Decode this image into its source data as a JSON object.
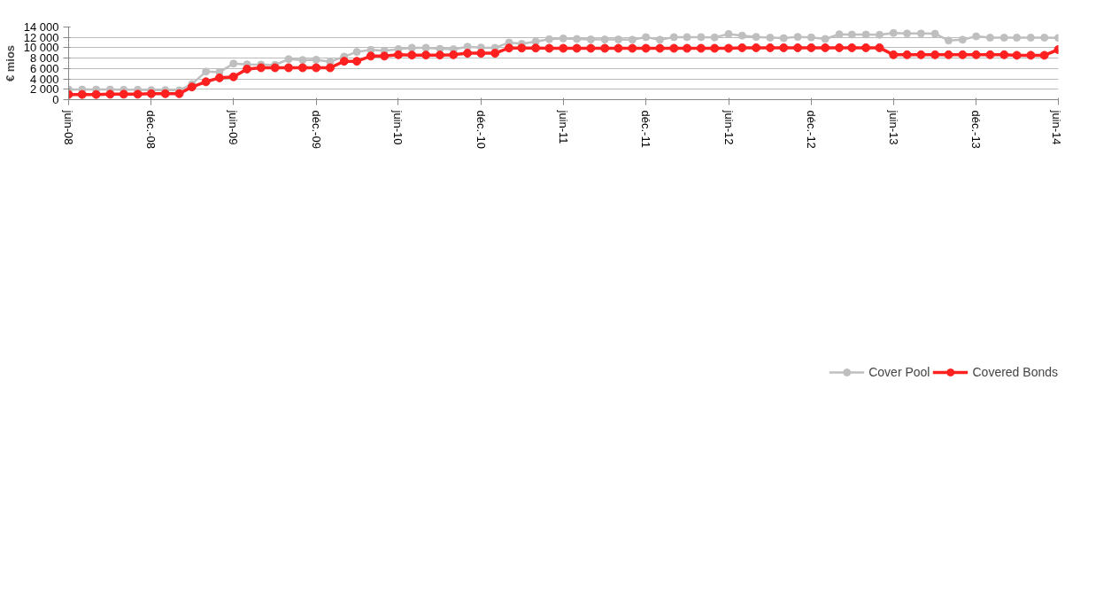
{
  "chart_data": {
    "type": "line",
    "ylabel": "€ mios",
    "x": [
      "2008-06",
      "2008-07",
      "2008-08",
      "2008-09",
      "2008-10",
      "2008-11",
      "2008-12",
      "2009-01",
      "2009-02",
      "2009-03",
      "2009-04",
      "2009-05",
      "2009-06",
      "2009-07",
      "2009-08",
      "2009-09",
      "2009-10",
      "2009-11",
      "2009-12",
      "2010-01",
      "2010-02",
      "2010-03",
      "2010-04",
      "2010-05",
      "2010-06",
      "2010-07",
      "2010-08",
      "2010-09",
      "2010-10",
      "2010-11",
      "2010-12",
      "2011-01",
      "2011-02",
      "2011-03",
      "2011-04",
      "2011-05",
      "2011-06",
      "2011-07",
      "2011-08",
      "2011-09",
      "2011-10",
      "2011-11",
      "2011-12",
      "2012-01",
      "2012-02",
      "2012-03",
      "2012-04",
      "2012-05",
      "2012-06",
      "2012-07",
      "2012-08",
      "2012-09",
      "2012-10",
      "2012-11",
      "2012-12",
      "2013-01",
      "2013-02",
      "2013-03",
      "2013-04",
      "2013-05",
      "2013-06",
      "2013-07",
      "2013-08",
      "2013-09",
      "2013-10",
      "2013-11",
      "2013-12",
      "2014-01",
      "2014-02",
      "2014-03",
      "2014-04",
      "2014-05",
      "2014-06"
    ],
    "series": [
      {
        "name": "Cover Pool",
        "color": "#bfbfbf",
        "marker": "circle",
        "values": [
          1950,
          1950,
          1950,
          1950,
          1900,
          1900,
          1850,
          1850,
          1800,
          3000,
          5400,
          5300,
          6950,
          6800,
          6750,
          6700,
          7800,
          7650,
          7700,
          7300,
          8300,
          9200,
          9600,
          9450,
          9750,
          10000,
          10000,
          9800,
          9700,
          10200,
          10050,
          10000,
          11000,
          10750,
          11200,
          11650,
          11800,
          11700,
          11600,
          11600,
          11600,
          11550,
          12050,
          11550,
          12050,
          12050,
          12050,
          12000,
          12650,
          12350,
          12100,
          11950,
          11850,
          12100,
          12000,
          11700,
          12600,
          12550,
          12550,
          12500,
          12850,
          12750,
          12750,
          12700,
          11400,
          11550,
          12200,
          11950,
          11950,
          11950,
          11950,
          11950,
          11900
        ]
      },
      {
        "name": "Covered Bonds",
        "color": "#ff2020",
        "marker": "circle",
        "values": [
          1000,
          1000,
          1000,
          1050,
          1050,
          1050,
          1150,
          1150,
          1150,
          2450,
          3450,
          4200,
          4400,
          5900,
          6150,
          6150,
          6150,
          6150,
          6150,
          6150,
          7400,
          7400,
          8400,
          8400,
          8650,
          8600,
          8600,
          8600,
          8650,
          8950,
          8950,
          8950,
          9950,
          9950,
          9950,
          9900,
          9900,
          9900,
          9900,
          9900,
          9900,
          9900,
          9900,
          9900,
          9900,
          9900,
          9900,
          9900,
          9900,
          10000,
          10000,
          10000,
          10000,
          10000,
          10000,
          10000,
          10000,
          10000,
          10000,
          10000,
          8650,
          8650,
          8650,
          8650,
          8650,
          8650,
          8650,
          8650,
          8650,
          8550,
          8550,
          8550,
          9650
        ]
      }
    ],
    "ylim": [
      0,
      14000
    ],
    "yticks": [
      0,
      {
        "value": 2000,
        "label": "2 000"
      },
      {
        "value": 4000,
        "label": "4 000"
      },
      {
        "value": 6000,
        "label": "6 000"
      },
      {
        "value": 8000,
        "label": "8 000"
      },
      {
        "value": 10000,
        "label": "10 000"
      },
      {
        "value": 12000,
        "label": "12 000"
      },
      {
        "value": 14000,
        "label": "14 000"
      }
    ],
    "xlim": [
      "2008-06",
      "2014-06"
    ],
    "xticks": [
      {
        "value": "2008-06",
        "label": "juin-08"
      },
      {
        "value": "2008-12",
        "label": "déc.-08"
      },
      {
        "value": "2009-06",
        "label": "juin-09"
      },
      {
        "value": "2009-12",
        "label": "déc.-09"
      },
      {
        "value": "2010-06",
        "label": "juin-10"
      },
      {
        "value": "2010-12",
        "label": "déc.-10"
      },
      {
        "value": "2011-06",
        "label": "juin-11"
      },
      {
        "value": "2011-12",
        "label": "déc.-11"
      },
      {
        "value": "2012-06",
        "label": "juin-12"
      },
      {
        "value": "2012-12",
        "label": "déc.-12"
      },
      {
        "value": "2013-06",
        "label": "juin-13"
      },
      {
        "value": "2013-12",
        "label": "déc.-13"
      },
      {
        "value": "2014-06",
        "label": "juin-14"
      }
    ],
    "grid": "y",
    "legend": "bottom"
  }
}
